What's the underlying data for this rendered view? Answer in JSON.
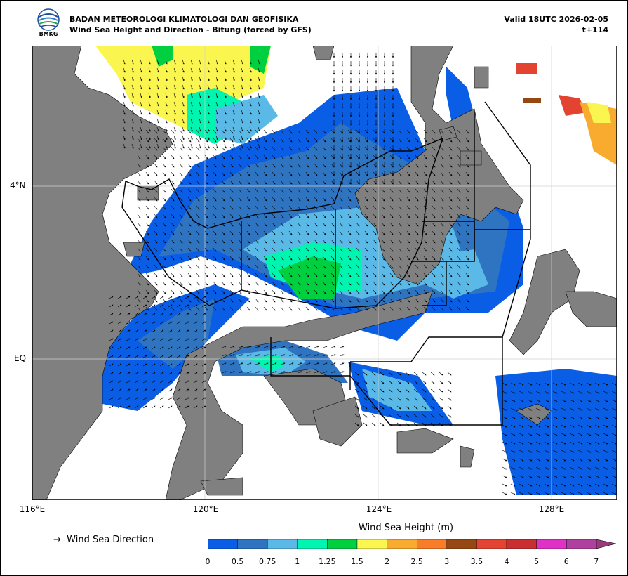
{
  "header": {
    "agency": "BADAN METEOROLOGI KLIMATOLOGI DAN GEOFISIKA",
    "subtitle": "Wind Sea Height and Direction - Bitung (forced by GFS)",
    "valid": "Valid 18UTC 2026-02-05",
    "lead": "t+114",
    "logo_text": "BMKG"
  },
  "axes": {
    "lat_labels": [
      "4°N",
      "EQ"
    ],
    "lon_labels": [
      "116°E",
      "120°E",
      "124°E",
      "128°E"
    ]
  },
  "legend": {
    "direction_symbol": "→",
    "direction_label": "Wind Sea Direction",
    "colorbar_title": "Wind Sea Height (m)",
    "levels": [
      "0",
      "0.5",
      "0.75",
      "1",
      "1.25",
      "1.5",
      "2",
      "2.5",
      "3",
      "3.5",
      "4",
      "5",
      "6",
      "7"
    ],
    "colors": [
      "#0a5ee6",
      "#2f74c0",
      "#5ab9e6",
      "#00f5b0",
      "#00d040",
      "#fbf550",
      "#f9ab30",
      "#f97c28",
      "#974812",
      "#e34432",
      "#c92e30",
      "#e031c6",
      "#b040a0"
    ],
    "extend_color": "#9a3a7e"
  },
  "map_colors": {
    "sea": "#ffffff",
    "land": "#808080",
    "boundary": "#000000",
    "grid": "#d0d0d0"
  }
}
